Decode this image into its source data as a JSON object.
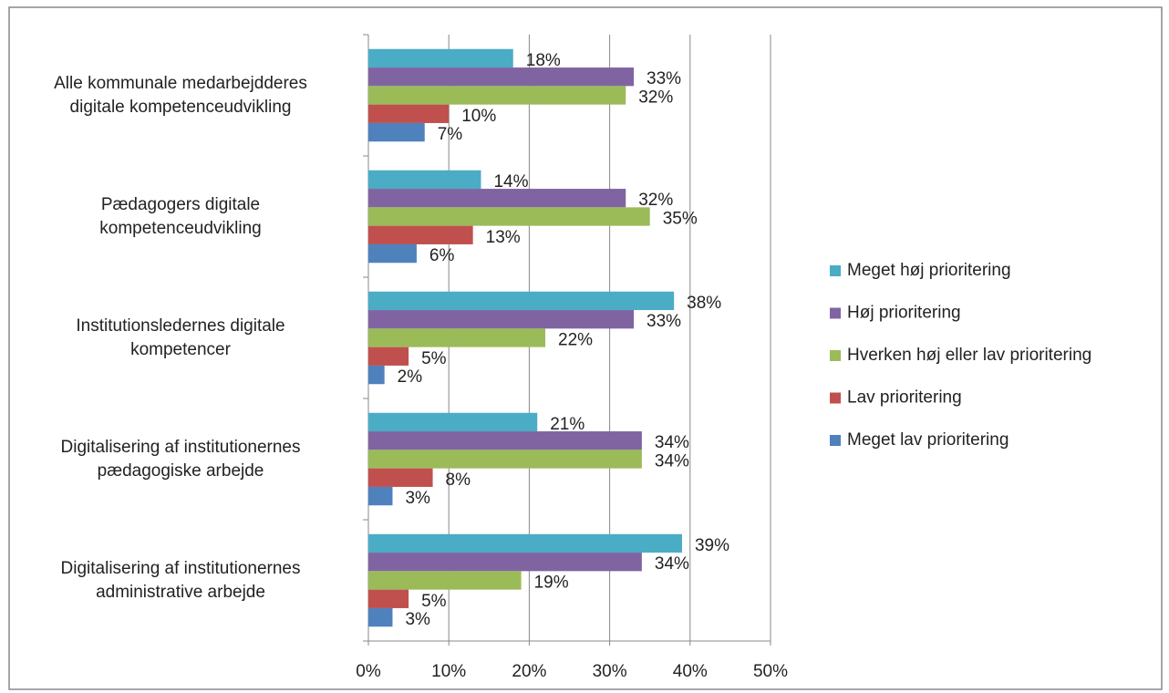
{
  "chart_data": {
    "type": "hbar",
    "categories": [
      "Alle kommunale medarbejdderes\ndigitale kompetenceudvikling",
      "Pædagogers digitale\nkompetenceudvikling",
      "Institutionsledernes digitale\nkompetencer",
      "Digitalisering af institutionernes\npædagogiske arbejde",
      "Digitalisering af institutionernes\nadministrative arbejde"
    ],
    "series": [
      {
        "name": "Meget høj prioritering",
        "color": "#4bacc6",
        "values": [
          18,
          14,
          38,
          21,
          39
        ],
        "value_labels": [
          "18%",
          "14%",
          "38%",
          "21%",
          "39%"
        ]
      },
      {
        "name": "Høj prioritering",
        "color": "#8064a2",
        "values": [
          33,
          32,
          33,
          34,
          34
        ],
        "value_labels": [
          "33%",
          "32%",
          "33%",
          "34%",
          "34%"
        ]
      },
      {
        "name": "Hverken høj eller lav prioritering",
        "color": "#9bbb59",
        "values": [
          32,
          35,
          22,
          34,
          19
        ],
        "value_labels": [
          "32%",
          "35%",
          "22%",
          "34%",
          "19%"
        ]
      },
      {
        "name": "Lav prioritering",
        "color": "#c0504d",
        "values": [
          10,
          13,
          5,
          8,
          5
        ],
        "value_labels": [
          "10%",
          "13%",
          "5%",
          "8%",
          "5%"
        ]
      },
      {
        "name": "Meget lav prioritering",
        "color": "#4f81bd",
        "values": [
          7,
          6,
          2,
          3,
          3
        ],
        "value_labels": [
          "7%",
          "6%",
          "2%",
          "3%",
          "3%"
        ]
      }
    ],
    "xlim": [
      0,
      50
    ],
    "xticks": [
      {
        "value": 0,
        "label": "0%"
      },
      {
        "value": 10,
        "label": "10%"
      },
      {
        "value": 20,
        "label": "20%"
      },
      {
        "value": 30,
        "label": "30%"
      },
      {
        "value": 40,
        "label": "40%"
      },
      {
        "value": 50,
        "label": "50%"
      }
    ],
    "grid": true,
    "legend": "right"
  }
}
